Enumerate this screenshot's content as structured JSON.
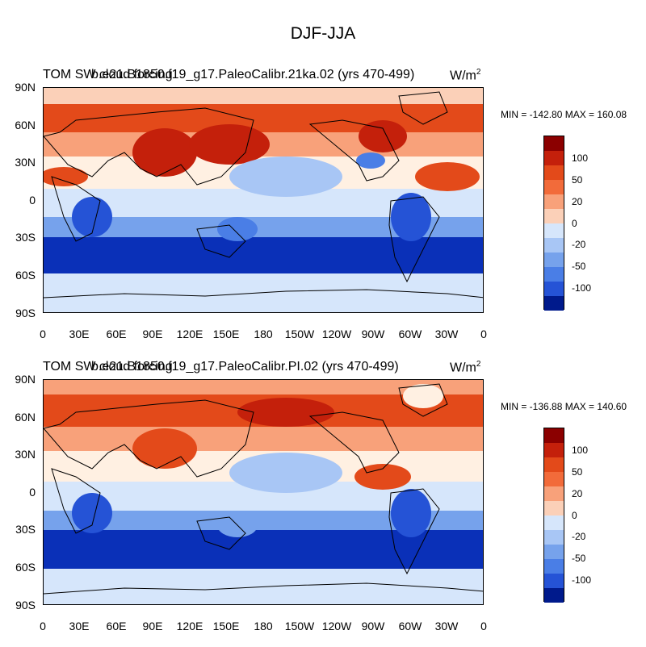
{
  "title": "DJF-JJA",
  "panels": [
    {
      "title_part1": "TOM SW cloud forcing",
      "title_part2": "b.e21.B1850.f19_g17.PaleoCalibr.21ka.02 (yrs 470-499)",
      "units_base": "W/m",
      "units_exp": "2",
      "minmax": "MIN = -142.80 MAX = 160.08"
    },
    {
      "title_part1": "TOM SW cloud forcing",
      "title_part2": "b.e21.B1850.f19_g17.PaleoCalibr.PI.02 (yrs 470-499)",
      "units_base": "W/m",
      "units_exp": "2",
      "minmax": "MIN = -136.88 MAX = 140.60"
    }
  ],
  "y_ticks": [
    "90N",
    "60N",
    "30N",
    "0",
    "30S",
    "60S",
    "90S"
  ],
  "x_ticks": [
    "0",
    "30E",
    "60E",
    "90E",
    "120E",
    "150E",
    "180",
    "150W",
    "120W",
    "90W",
    "60W",
    "30W",
    "0"
  ],
  "colorbar_labels": [
    "100",
    "50",
    "20",
    "0",
    "-20",
    "-50",
    "-100"
  ],
  "colors": {
    "bands": [
      "#8b0000",
      "#c4200b",
      "#e34a1a",
      "#f26b3a",
      "#f8a17a",
      "#fbd0b8",
      "#fff0e2",
      "#d6e6fb",
      "#a8c6f5",
      "#76a2ec",
      "#4a7ee6",
      "#2553d6",
      "#0a30b8",
      "#001a8c"
    ],
    "land_line": "#000000"
  }
}
